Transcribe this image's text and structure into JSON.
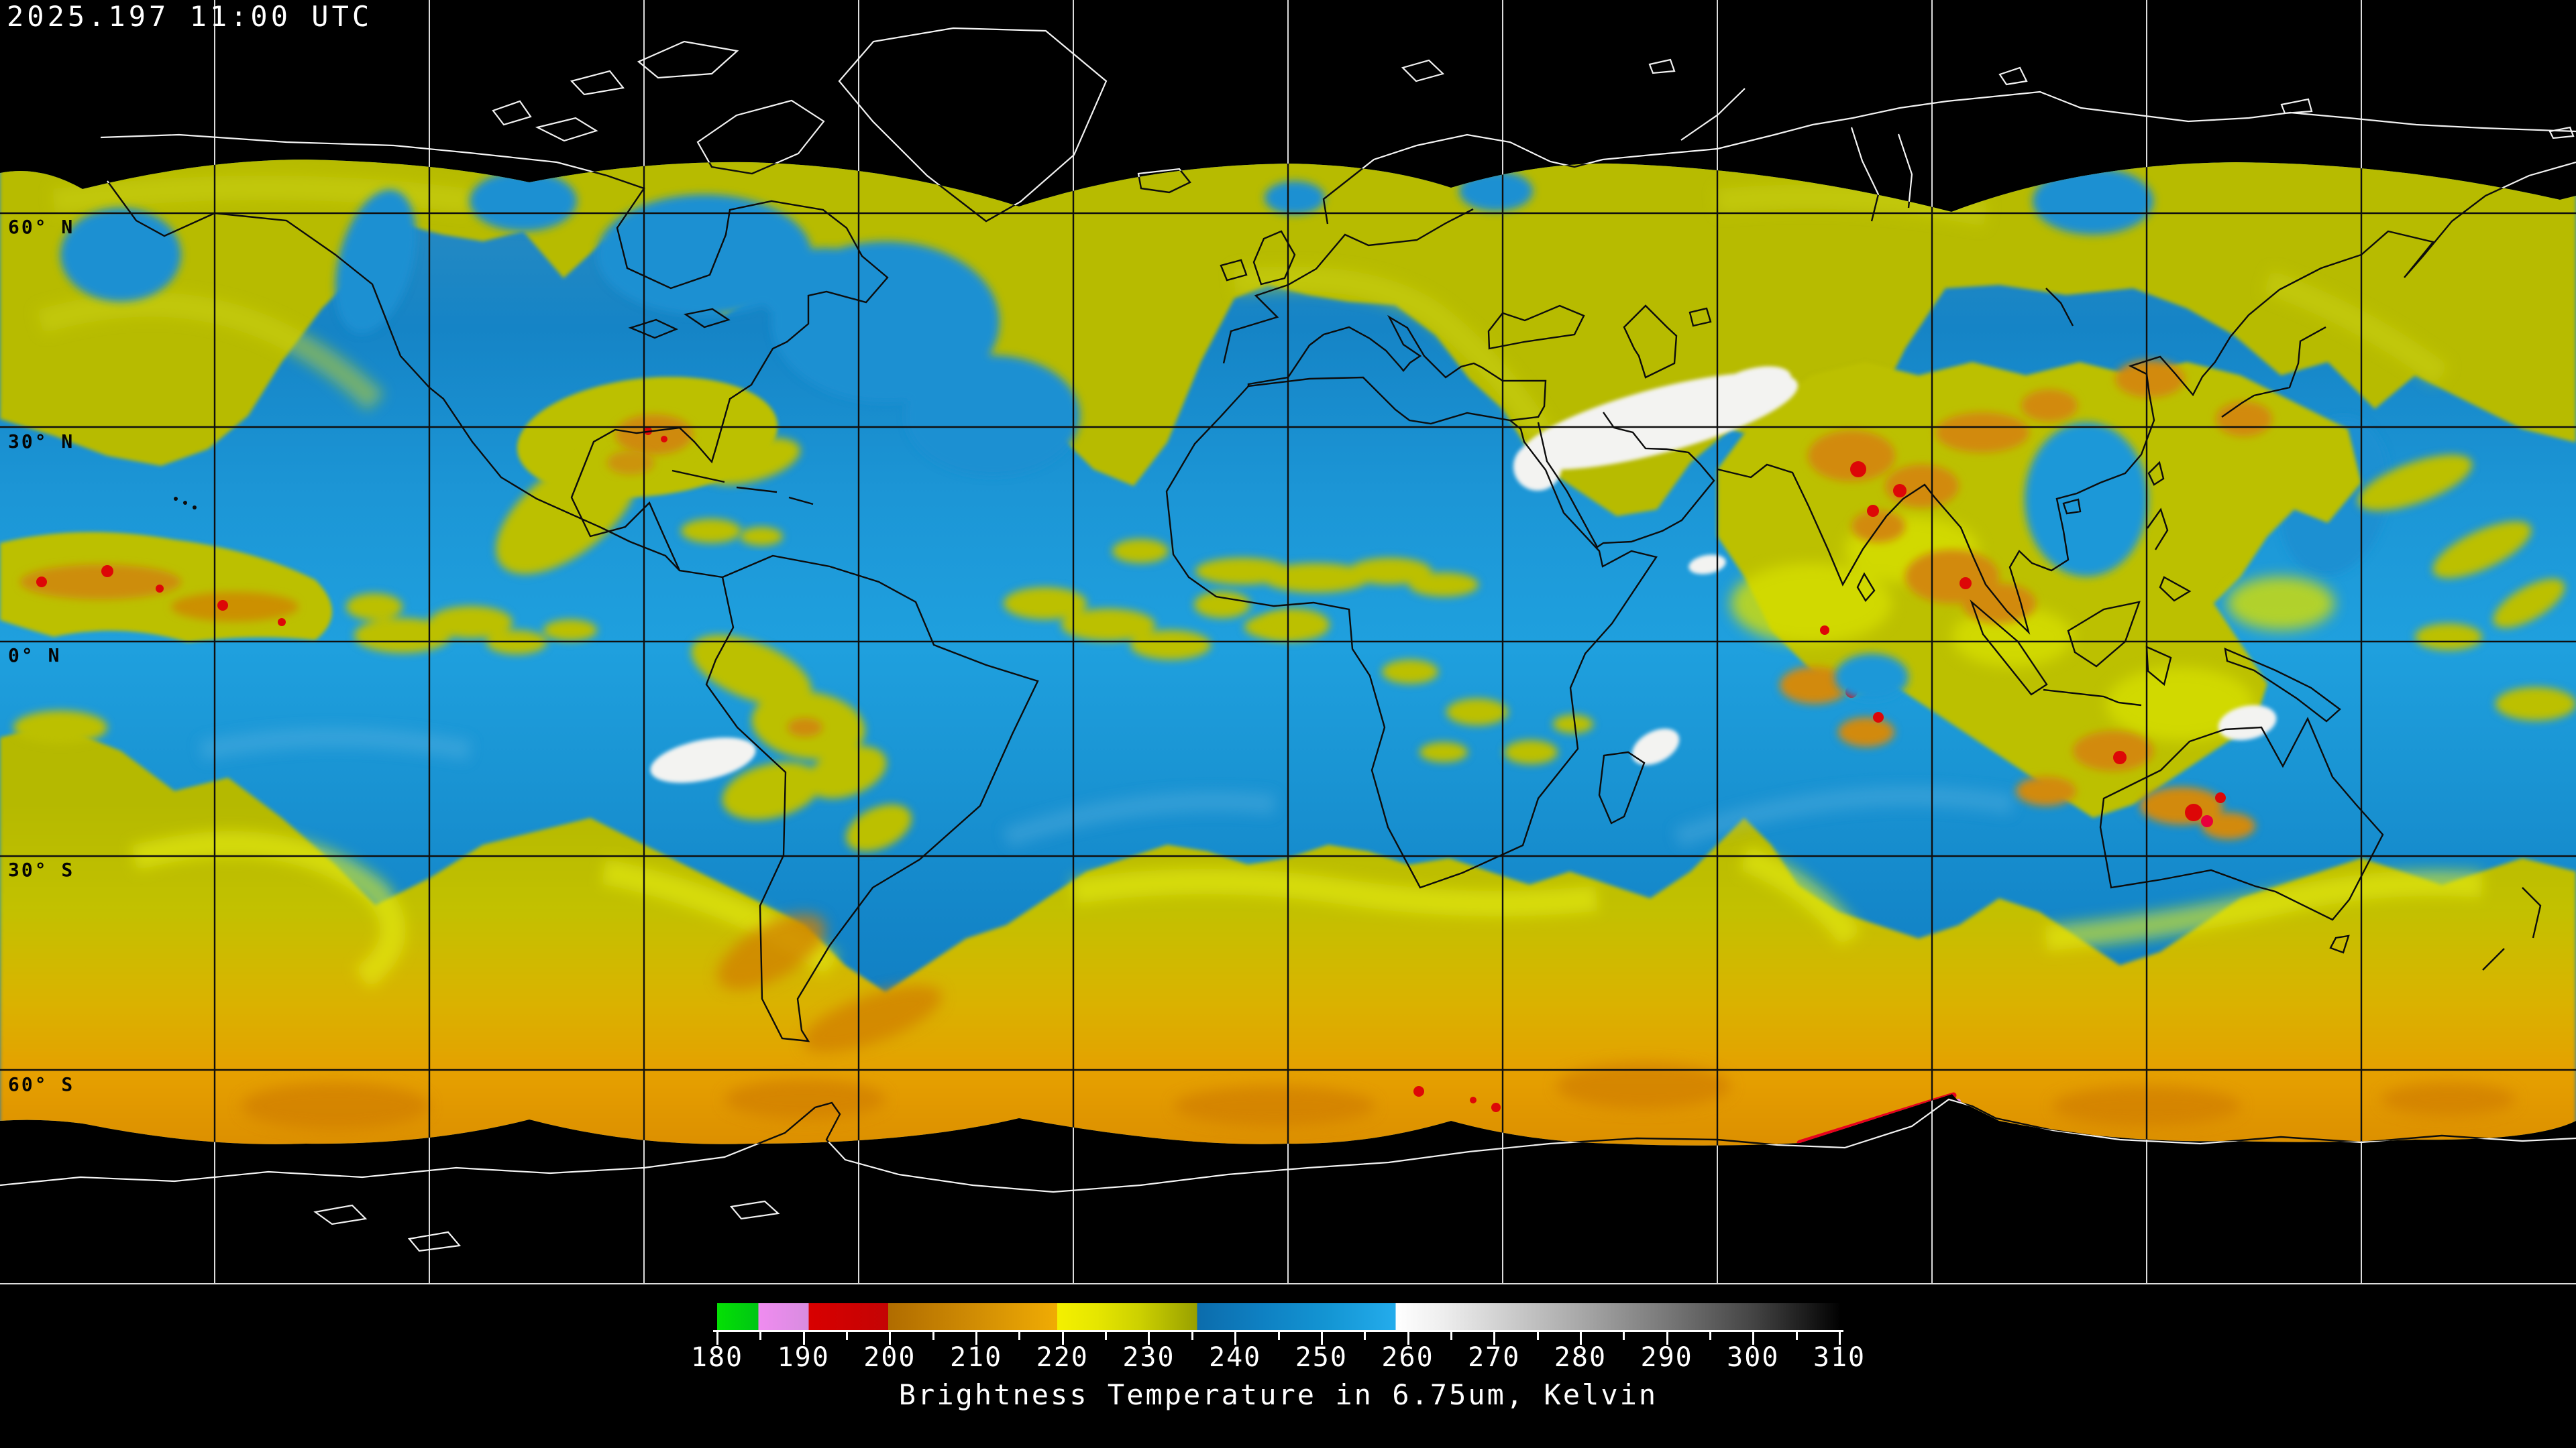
{
  "header": {
    "timestamp": "2025.197 11:00 UTC"
  },
  "map": {
    "latitude_labels": [
      "60° N",
      "30° N",
      "0° N",
      "30° S",
      "60° S"
    ],
    "grid_spacing_degrees": 30
  },
  "colorbar": {
    "title": "Brightness Temperature in 6.75um, Kelvin",
    "min": 180,
    "max": 310,
    "minor_step": 5,
    "tick_labels": [
      "180",
      "190",
      "200",
      "210",
      "220",
      "230",
      "240",
      "250",
      "260",
      "270",
      "280",
      "290",
      "300",
      "310"
    ],
    "stops": [
      {
        "v": 180,
        "c": "#04e004"
      },
      {
        "v": 184.8,
        "c": "#00c614"
      },
      {
        "v": 184.8,
        "c": "#f08cf0"
      },
      {
        "v": 190.6,
        "c": "#d88ce0"
      },
      {
        "v": 190.6,
        "c": "#d80000"
      },
      {
        "v": 199.8,
        "c": "#c40404"
      },
      {
        "v": 199.8,
        "c": "#b06c00"
      },
      {
        "v": 210,
        "c": "#d18d04"
      },
      {
        "v": 219.4,
        "c": "#f0ac04"
      },
      {
        "v": 219.4,
        "c": "#f4f000"
      },
      {
        "v": 224,
        "c": "#e6e600"
      },
      {
        "v": 229,
        "c": "#ccd000"
      },
      {
        "v": 235.6,
        "c": "#98a000"
      },
      {
        "v": 235.6,
        "c": "#0c6cac"
      },
      {
        "v": 243,
        "c": "#0e80c2"
      },
      {
        "v": 251,
        "c": "#1496d4"
      },
      {
        "v": 258.6,
        "c": "#24acec"
      },
      {
        "v": 258.6,
        "c": "#ffffff"
      },
      {
        "v": 264,
        "c": "#eeeeee"
      },
      {
        "v": 270,
        "c": "#d4d4d4"
      },
      {
        "v": 280,
        "c": "#a8a8a8"
      },
      {
        "v": 290,
        "c": "#787878"
      },
      {
        "v": 300,
        "c": "#444444"
      },
      {
        "v": 310,
        "c": "#020202"
      }
    ]
  },
  "chart_data": {
    "type": "heatmap",
    "title": "Brightness Temperature in 6.75um, Kelvin",
    "timestamp": "2025.197 11:00 UTC",
    "colorbar_range": [
      180,
      310
    ],
    "colorbar_ticks": [
      180,
      190,
      200,
      210,
      220,
      230,
      240,
      250,
      260,
      270,
      280,
      290,
      300,
      310
    ],
    "latitude_gridlines": [
      "60° N",
      "30° N",
      "0° N",
      "30° S",
      "60° S"
    ]
  }
}
